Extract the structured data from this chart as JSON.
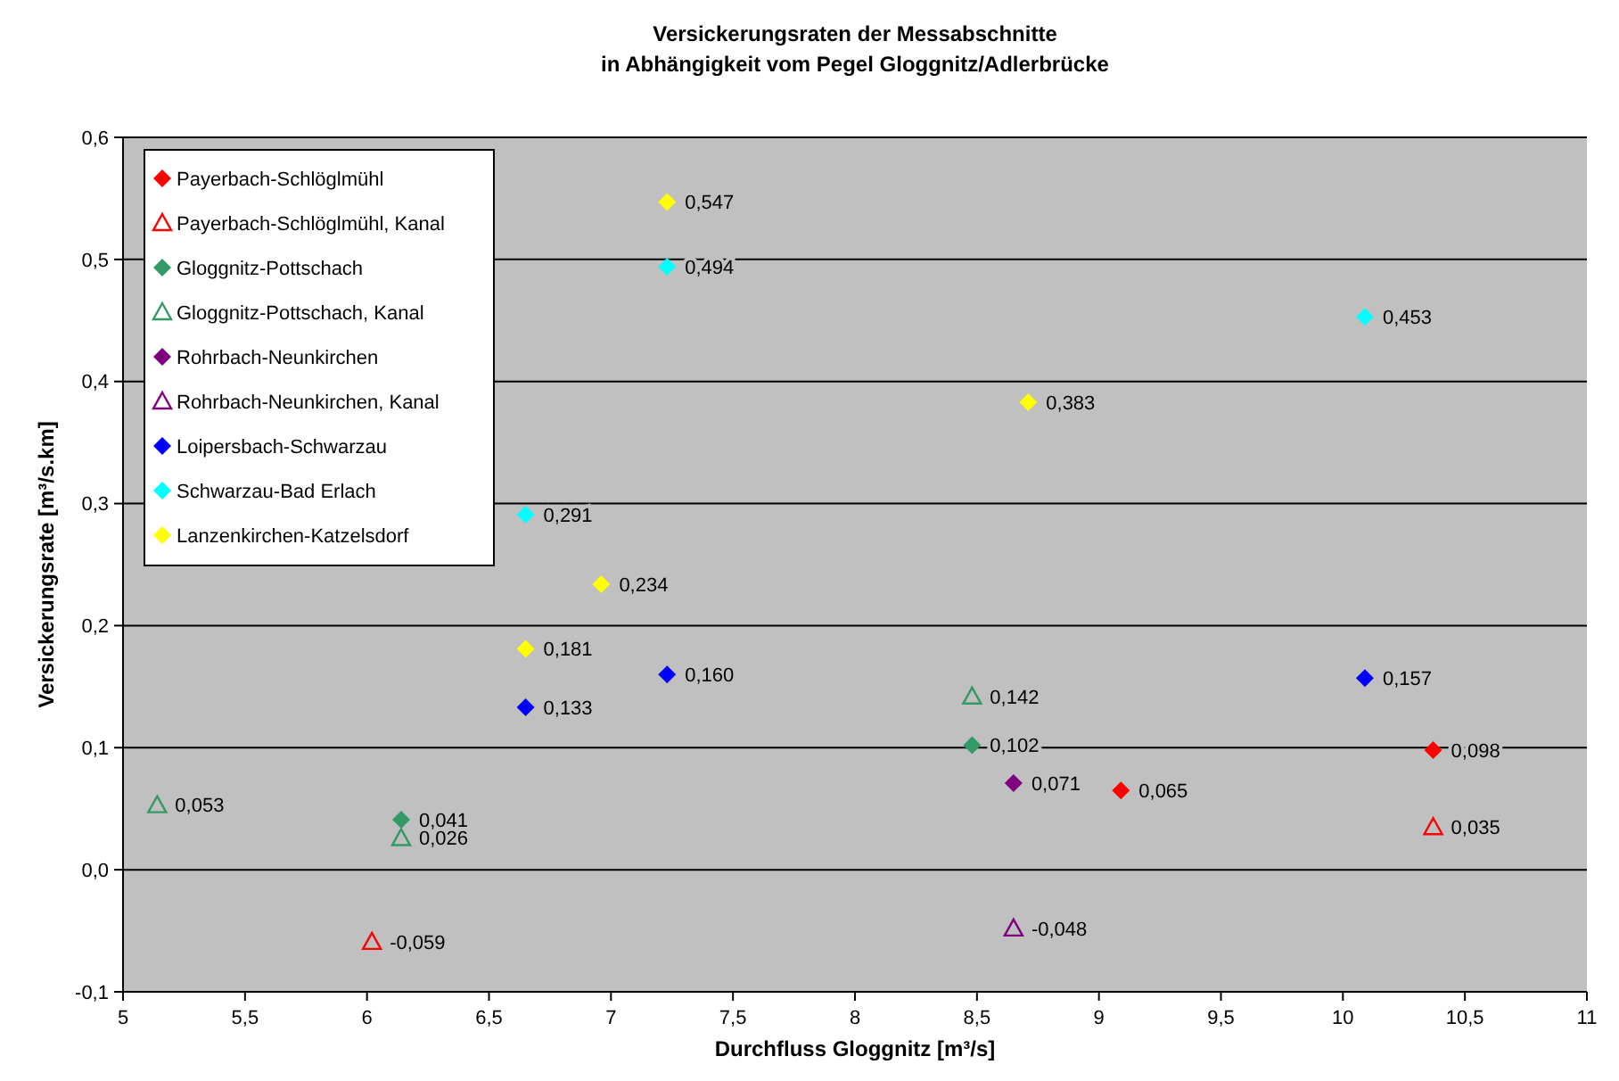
{
  "chart_data": {
    "type": "scatter",
    "title": "Versickerungsraten der Messabschnitte\nin Abhängigkeit vom Pegel Gloggnitz/Adlerbrücke",
    "xlabel": "Durchfluss Gloggnitz [m³/s]",
    "ylabel": "Versickerungsrate [m³/s.km]",
    "xlim": [
      5,
      11
    ],
    "xticks": [
      5,
      {
        "value": 5.5,
        "label": "5,5"
      },
      6,
      {
        "value": 6.5,
        "label": "6,5"
      },
      7,
      {
        "value": 7.5,
        "label": "7,5"
      },
      8,
      {
        "value": 8.5,
        "label": "8,5"
      },
      9,
      {
        "value": 9.5,
        "label": "9,5"
      },
      10,
      {
        "value": 10.5,
        "label": "10,5"
      },
      11
    ],
    "ylim": [
      -0.1,
      0.6
    ],
    "yticks": [
      {
        "value": -0.1,
        "label": "-0,1"
      },
      {
        "value": 0,
        "label": "0,0"
      },
      {
        "value": 0.1,
        "label": "0,1"
      },
      {
        "value": 0.2,
        "label": "0,2"
      },
      {
        "value": 0.3,
        "label": "0,3"
      },
      {
        "value": 0.4,
        "label": "0,4"
      },
      {
        "value": 0.5,
        "label": "0,5"
      },
      {
        "value": 0.6,
        "label": "0,6"
      }
    ],
    "grid": "y",
    "legend": "top left",
    "series": [
      {
        "name": "Payerbach-Schlöglmühl",
        "color": "#ff0000",
        "marker": "diamond",
        "x": [
          9.09,
          10.37
        ],
        "values": [
          0.065,
          0.098
        ],
        "value_labels": [
          "0,065",
          "0,098"
        ]
      },
      {
        "name": "Payerbach-Schlöglmühl, Kanal",
        "color": "#ff0000",
        "marker": "triangle",
        "x": [
          6.02,
          10.37
        ],
        "values": [
          -0.059,
          0.035
        ],
        "value_labels": [
          "-0,059",
          "0,035"
        ]
      },
      {
        "name": "Gloggnitz-Pottschach",
        "color": "#339966",
        "marker": "diamond",
        "x": [
          6.14,
          8.48
        ],
        "values": [
          0.041,
          0.102
        ],
        "value_labels": [
          "0,041",
          "0,102"
        ]
      },
      {
        "name": "Gloggnitz-Pottschach, Kanal",
        "color": "#339966",
        "marker": "triangle",
        "x": [
          5.14,
          6.14,
          8.48
        ],
        "values": [
          0.053,
          0.026,
          0.142
        ],
        "value_labels": [
          "0,053",
          "0,026",
          "0,142"
        ]
      },
      {
        "name": "Rohrbach-Neunkirchen",
        "color": "#800080",
        "marker": "diamond",
        "x": [
          8.65
        ],
        "values": [
          0.071
        ],
        "value_labels": [
          "0,071"
        ]
      },
      {
        "name": "Rohrbach-Neunkirchen, Kanal",
        "color": "#800080",
        "marker": "triangle",
        "x": [
          8.65
        ],
        "values": [
          -0.048
        ],
        "value_labels": [
          "-0,048"
        ]
      },
      {
        "name": "Loipersbach-Schwarzau",
        "color": "#0000ff",
        "marker": "diamond",
        "x": [
          6.65,
          7.23,
          10.09
        ],
        "values": [
          0.133,
          0.16,
          0.157
        ],
        "value_labels": [
          "0,133",
          "0,160",
          "0,157"
        ]
      },
      {
        "name": "Schwarzau-Bad Erlach",
        "color": "#00ffff",
        "marker": "diamond",
        "x": [
          6.65,
          7.23,
          10.09
        ],
        "values": [
          0.291,
          0.494,
          0.453
        ],
        "value_labels": [
          "0,291",
          "0,494",
          "0,453"
        ]
      },
      {
        "name": "Lanzenkirchen-Katzelsdorf",
        "color": "#ffff00",
        "marker": "diamond",
        "x": [
          6.65,
          6.96,
          7.23,
          8.71
        ],
        "values": [
          0.181,
          0.234,
          0.547,
          0.383
        ],
        "value_labels": [
          "0,181",
          "0,234",
          "0,547",
          "0,383"
        ]
      }
    ]
  }
}
